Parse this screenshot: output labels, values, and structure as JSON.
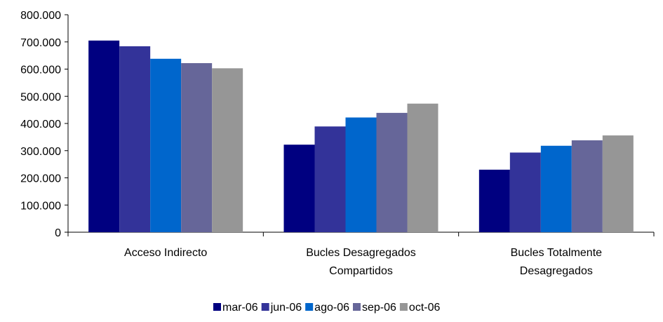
{
  "chart_data": {
    "type": "bar",
    "categories": [
      "Acceso Indirecto",
      "Bucles Desagregados Compartidos",
      "Bucles Totalmente Desagregados"
    ],
    "category_label_lines": [
      [
        "Acceso Indirecto"
      ],
      [
        "Bucles Desagregados",
        "Compartidos"
      ],
      [
        "Bucles Totalmente",
        "Desagregados"
      ]
    ],
    "series": [
      {
        "name": "mar-06",
        "color": "#000080",
        "values": [
          705000,
          322000,
          230000
        ]
      },
      {
        "name": "jun-06",
        "color": "#333399",
        "values": [
          684000,
          389000,
          293000
        ]
      },
      {
        "name": "ago-06",
        "color": "#0066CC",
        "values": [
          638000,
          422000,
          318000
        ]
      },
      {
        "name": "sep-06",
        "color": "#666699",
        "values": [
          622000,
          439000,
          338000
        ]
      },
      {
        "name": "oct-06",
        "color": "#969696",
        "values": [
          603000,
          473000,
          356000
        ]
      }
    ],
    "yticks": [
      "0",
      "100.000",
      "200.000",
      "300.000",
      "400.000",
      "500.000",
      "600.000",
      "700.000",
      "800.000"
    ],
    "ylim": [
      0,
      800000
    ],
    "title": "",
    "xlabel": "",
    "ylabel": "",
    "grid": false,
    "legend_position": "bottom"
  }
}
